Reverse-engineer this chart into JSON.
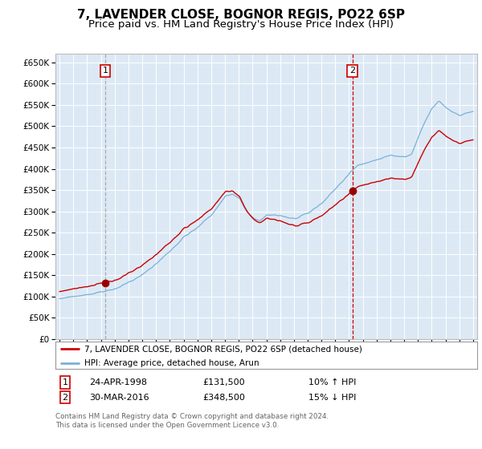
{
  "title": "7, LAVENDER CLOSE, BOGNOR REGIS, PO22 6SP",
  "subtitle": "Price paid vs. HM Land Registry's House Price Index (HPI)",
  "ylabel_ticks": [
    "£0",
    "£50K",
    "£100K",
    "£150K",
    "£200K",
    "£250K",
    "£300K",
    "£350K",
    "£400K",
    "£450K",
    "£500K",
    "£550K",
    "£600K",
    "£650K"
  ],
  "ytick_values": [
    0,
    50000,
    100000,
    150000,
    200000,
    250000,
    300000,
    350000,
    400000,
    450000,
    500000,
    550000,
    600000,
    650000
  ],
  "ylim": [
    0,
    670000
  ],
  "xlim_start": 1994.7,
  "xlim_end": 2025.3,
  "sale1_date": 1998.31,
  "sale1_price": 131500,
  "sale2_date": 2016.25,
  "sale2_price": 348500,
  "legend_line1": "7, LAVENDER CLOSE, BOGNOR REGIS, PO22 6SP (detached house)",
  "legend_line2": "HPI: Average price, detached house, Arun",
  "footer": "Contains HM Land Registry data © Crown copyright and database right 2024.\nThis data is licensed under the Open Government Licence v3.0.",
  "bg_color": "#dce9f5",
  "grid_color": "#c8d8e8",
  "red_line_color": "#cc0000",
  "blue_line_color": "#7ab0d8",
  "sale1_vline_color": "#aaaaaa",
  "sale2_vline_color": "#cc0000",
  "marker_color": "#990000",
  "title_fontsize": 11,
  "subtitle_fontsize": 9.5
}
